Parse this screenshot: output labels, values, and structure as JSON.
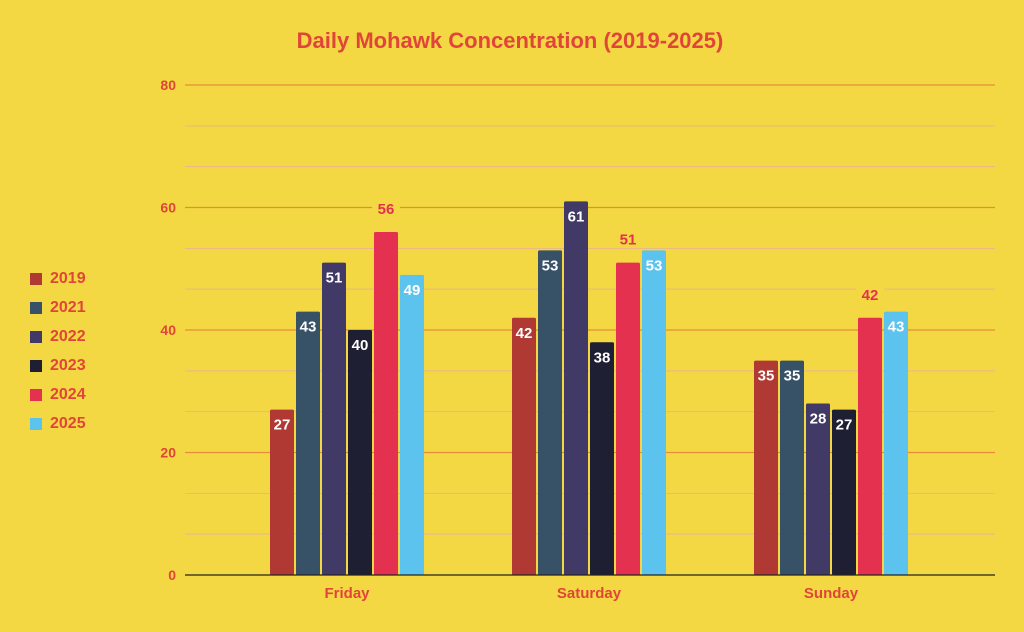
{
  "chart_data": {
    "type": "bar",
    "title": "Daily Mohawk Concentration (2019-2025)",
    "xlabel": "",
    "ylabel": "",
    "ylim": [
      0,
      80
    ],
    "yticks": [
      0,
      20,
      40,
      60,
      80
    ],
    "grid": true,
    "legend_position": "left",
    "categories": [
      "Friday",
      "Saturday",
      "Sunday"
    ],
    "series": [
      {
        "name": "2019",
        "color": "#b03a33",
        "values": [
          27,
          42,
          35
        ]
      },
      {
        "name": "2021",
        "color": "#375167",
        "values": [
          43,
          53,
          35
        ]
      },
      {
        "name": "2022",
        "color": "#423a66",
        "values": [
          51,
          61,
          28
        ]
      },
      {
        "name": "2023",
        "color": "#1f1f33",
        "values": [
          40,
          38,
          27
        ]
      },
      {
        "name": "2024",
        "color": "#e3314f",
        "values": [
          56,
          51,
          42
        ],
        "label_outside": true
      },
      {
        "name": "2025",
        "color": "#5bc3ee",
        "values": [
          49,
          53,
          43
        ]
      }
    ]
  }
}
